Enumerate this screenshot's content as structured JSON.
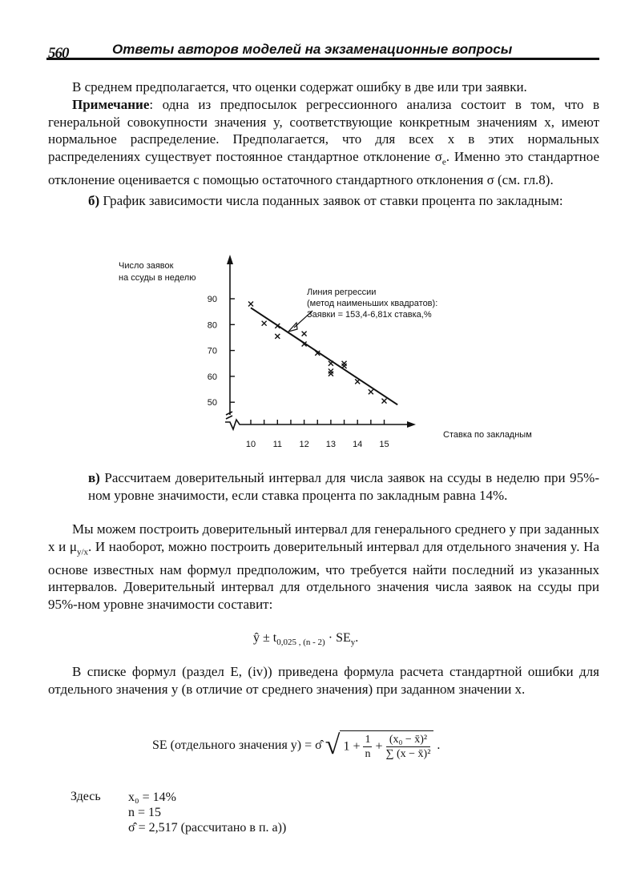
{
  "header": {
    "page_number": "560",
    "title": "Ответы авторов моделей на экзаменационные вопросы"
  },
  "paragraphs": {
    "p1": "В среднем предполагается, что оценки содержат ошибку в две или три заявки.",
    "p2_bold": "Примечание",
    "p2": ": одна из предпосылок регрессионного анализа состоит в том, что в генеральной совокупности значения y, соответствующие конкретным значениям x, имеют нормальное распределение. Предполагается, что для всех x в этих нормальных распределениях существует постоянное стандартное отклонение σ",
    "p2_sub": "e",
    "p2_end": ". Именно это стандартное отклонение оценивается с помощью остаточного стандартного отклонения σ (см. гл.8).",
    "item_b_label": "б)",
    "item_b": " График зависимости числа поданных заявок от ставки процента по закладным:",
    "item_v_label": "в)",
    "item_v": " Рассчитаем доверительный интервал для числа заявок на ссуды в неделю при 95%-ном уровне значимости, если ставка процента по закладным равна 14%.",
    "p3a": "Мы можем построить доверительный интервал для генерального среднего y при заданных x и μ",
    "p3_sub": "y/x",
    "p3b": ". И наоборот, можно построить доверительный интервал для отдельного значения y. На основе известных нам формул предположим, что требуется найти последний из указанных интервалов. Доверительный интервал для отдельного значения числа заявок на ссуды при 95%-ном уровне значимости составит:",
    "p4": "В списке формул (раздел E, (iv)) приведена формула расчета стандартной ошибки для отдельного значения y (в отличие от среднего значения) при заданном значении x."
  },
  "formula1": {
    "main": "ŷ ± t",
    "sub": "0,025 , (n - 2)",
    "dot": " · SE",
    "sub2": "y",
    "end": "."
  },
  "formula2": {
    "lhs": "SE (отдельного значения y) = σ̂",
    "one": "1 +",
    "n_num": "1",
    "n_den": "n",
    "plus": "+",
    "num": "(x₀ − x̄)²",
    "den": "∑ (x − x̄)²",
    "end": "."
  },
  "given": {
    "label": "Здесь",
    "x0": "x₀ = 14%",
    "n": "n = 15",
    "sigma": "σ̂ = 2,517 (рассчитано в п. а))"
  },
  "chart_data": {
    "type": "scatter",
    "ylabel": [
      "Число заявок",
      "на ссуды в неделю"
    ],
    "xlabel": "Ставка по закладным",
    "xticks": [
      "10",
      "11",
      "12",
      "13",
      "14",
      "15"
    ],
    "yticks": [
      "50",
      "60",
      "70",
      "80",
      "90"
    ],
    "xlim": [
      9.2,
      16.2
    ],
    "ylim": [
      41,
      104
    ],
    "axis_break": true,
    "points": [
      [
        10,
        88
      ],
      [
        10.5,
        80.5
      ],
      [
        11,
        79.5
      ],
      [
        11,
        75.5
      ],
      [
        12,
        76.5
      ],
      [
        12,
        72.5
      ],
      [
        12.5,
        69
      ],
      [
        13,
        65
      ],
      [
        13,
        62
      ],
      [
        13,
        61
      ],
      [
        13.5,
        65
      ],
      [
        13.5,
        64
      ],
      [
        14,
        58
      ],
      [
        14.5,
        54
      ],
      [
        15,
        50.5
      ]
    ],
    "regression": {
      "intercept": 153.4,
      "slope": -6.81,
      "x_range": [
        10,
        15.5
      ]
    },
    "annotation": [
      "Линия регрессии",
      "(метод наименьших квадратов):",
      "Заявки = 153,4-6,81x ставка,%"
    ]
  }
}
